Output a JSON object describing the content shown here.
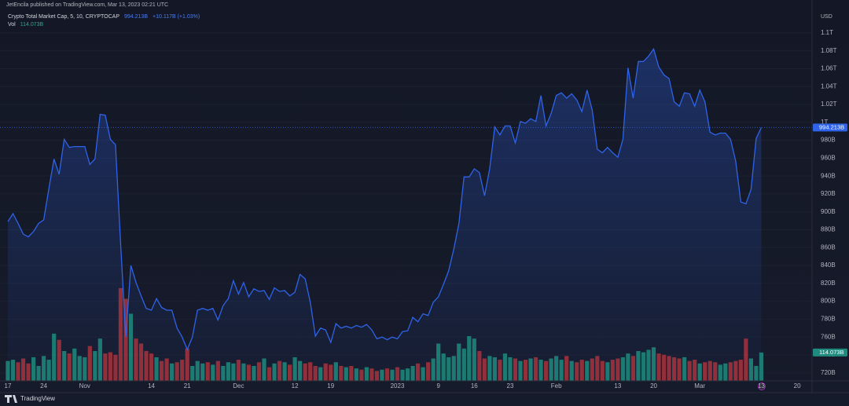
{
  "header": {
    "published": "JetEncila published on TradingView.com, Mar 13, 2023 02:21 UTC",
    "price": "994.213B",
    "change": "+10.117B (+1.03%)",
    "vol_name": "Vol",
    "vol_value": "114.073B",
    "currency": "USD",
    "brand": "TradingView"
  },
  "chart_data": {
    "type": "area",
    "categories": [
      "17",
      null,
      null,
      null,
      null,
      null,
      null,
      "24",
      null,
      null,
      null,
      null,
      null,
      null,
      null,
      "Nov",
      null,
      null,
      null,
      null,
      null,
      null,
      null,
      null,
      null,
      null,
      null,
      null,
      "14",
      null,
      null,
      null,
      null,
      null,
      null,
      "21",
      null,
      null,
      null,
      null,
      null,
      null,
      null,
      null,
      null,
      "Dec",
      null,
      null,
      null,
      null,
      null,
      null,
      null,
      null,
      null,
      null,
      "12",
      null,
      null,
      null,
      null,
      null,
      null,
      "19",
      null,
      null,
      null,
      null,
      null,
      null,
      null,
      null,
      null,
      null,
      null,
      null,
      "2023",
      null,
      null,
      null,
      null,
      null,
      null,
      null,
      "9",
      null,
      null,
      null,
      null,
      null,
      null,
      "16",
      null,
      null,
      null,
      null,
      null,
      null,
      "23",
      null,
      null,
      null,
      null,
      null,
      null,
      null,
      null,
      "Feb",
      null,
      null,
      null,
      null,
      null,
      null,
      null,
      null,
      null,
      null,
      null,
      "13",
      null,
      null,
      null,
      null,
      null,
      null,
      "20",
      null,
      null,
      null,
      null,
      null,
      null,
      null,
      null,
      "Mar",
      null,
      null,
      null,
      null,
      null,
      null,
      null,
      null,
      null,
      null,
      null,
      "13",
      null,
      null,
      null,
      null,
      null,
      null,
      "20"
    ],
    "series": [
      {
        "name": "Crypto Total Market Cap, 5, 10, CRYPTOCAP",
        "color": "#2f63e8",
        "values": [
          889,
          898,
          887,
          875,
          872,
          878,
          887,
          891,
          926,
          959,
          942,
          981,
          972,
          973,
          973,
          973,
          953,
          959,
          1009,
          1008,
          981,
          975,
          865,
          760,
          840,
          821,
          806,
          792,
          790,
          803,
          793,
          790,
          790,
          770,
          760,
          746,
          760,
          790,
          792,
          790,
          792,
          779,
          795,
          803,
          823,
          808,
          821,
          805,
          814,
          811,
          812,
          802,
          815,
          811,
          812,
          806,
          810,
          830,
          825,
          799,
          761,
          770,
          768,
          754,
          775,
          770,
          772,
          770,
          773,
          771,
          774,
          768,
          758,
          760,
          757,
          760,
          758,
          766,
          767,
          782,
          777,
          786,
          784,
          799,
          805,
          819,
          834,
          858,
          887,
          939,
          939,
          948,
          944,
          918,
          948,
          995,
          986,
          996,
          996,
          977,
          1001,
          999,
          1004,
          1001,
          1030,
          996,
          1010,
          1030,
          1033,
          1027,
          1032,
          1025,
          1012,
          1036,
          1014,
          970,
          966,
          972,
          966,
          961,
          981,
          1061,
          1027,
          1068,
          1068,
          1074,
          1082,
          1062,
          1053,
          1049,
          1023,
          1018,
          1033,
          1032,
          1018,
          1036,
          1023,
          989,
          986,
          988,
          988,
          981,
          957,
          911,
          909,
          925,
          982,
          994.213,
          null,
          null,
          null,
          null,
          null,
          null,
          null
        ]
      },
      {
        "name": "Vol",
        "axis": "y2",
        "up_color": "#1f8b7e",
        "down_color": "#a7323d",
        "values": [
          80,
          85,
          75,
          90,
          70,
          95,
          60,
          100,
          85,
          190,
          165,
          120,
          110,
          130,
          100,
          95,
          140,
          120,
          170,
          110,
          115,
          105,
          373,
          330,
          270,
          170,
          150,
          120,
          110,
          95,
          80,
          90,
          70,
          75,
          85,
          130,
          60,
          80,
          70,
          75,
          65,
          80,
          60,
          75,
          70,
          85,
          70,
          65,
          60,
          75,
          90,
          55,
          70,
          80,
          75,
          65,
          95,
          80,
          70,
          75,
          60,
          55,
          70,
          65,
          75,
          60,
          55,
          60,
          50,
          45,
          55,
          50,
          40,
          45,
          50,
          45,
          55,
          45,
          50,
          60,
          70,
          55,
          75,
          90,
          150,
          110,
          95,
          100,
          150,
          130,
          180,
          170,
          120,
          90,
          100,
          95,
          85,
          110,
          95,
          90,
          80,
          85,
          90,
          95,
          85,
          80,
          90,
          100,
          85,
          100,
          80,
          75,
          85,
          80,
          90,
          100,
          80,
          75,
          85,
          90,
          95,
          110,
          100,
          120,
          115,
          125,
          135,
          110,
          105,
          100,
          95,
          90,
          95,
          80,
          85,
          70,
          75,
          80,
          75,
          65,
          70,
          75,
          80,
          85,
          170,
          90,
          60,
          114.073,
          null,
          null,
          null,
          null,
          null,
          null,
          null
        ]
      }
    ],
    "price_label": "994.213B",
    "volume_label": "114.073B",
    "ylim": [
      711,
      1128
    ],
    "y2lim": [
      0,
      1500
    ],
    "yticks": [
      {
        "value": 720,
        "label": "720B"
      },
      {
        "value": 740,
        "label": "740B"
      },
      {
        "value": 760,
        "label": "760B"
      },
      {
        "value": 780,
        "label": "780B"
      },
      {
        "value": 800,
        "label": "800B"
      },
      {
        "value": 820,
        "label": "820B"
      },
      {
        "value": 840,
        "label": "840B"
      },
      {
        "value": 860,
        "label": "860B"
      },
      {
        "value": 880,
        "label": "880B"
      },
      {
        "value": 900,
        "label": "900B"
      },
      {
        "value": 920,
        "label": "920B"
      },
      {
        "value": 940,
        "label": "940B"
      },
      {
        "value": 960,
        "label": "960B"
      },
      {
        "value": 980,
        "label": "980B"
      },
      {
        "value": 1000,
        "label": "1T"
      },
      {
        "value": 1020,
        "label": "1.02T"
      },
      {
        "value": 1040,
        "label": "1.04T"
      },
      {
        "value": 1060,
        "label": "1.06T"
      },
      {
        "value": 1080,
        "label": "1.08T"
      },
      {
        "value": 1100,
        "label": "1.1T"
      }
    ],
    "grid": true
  }
}
